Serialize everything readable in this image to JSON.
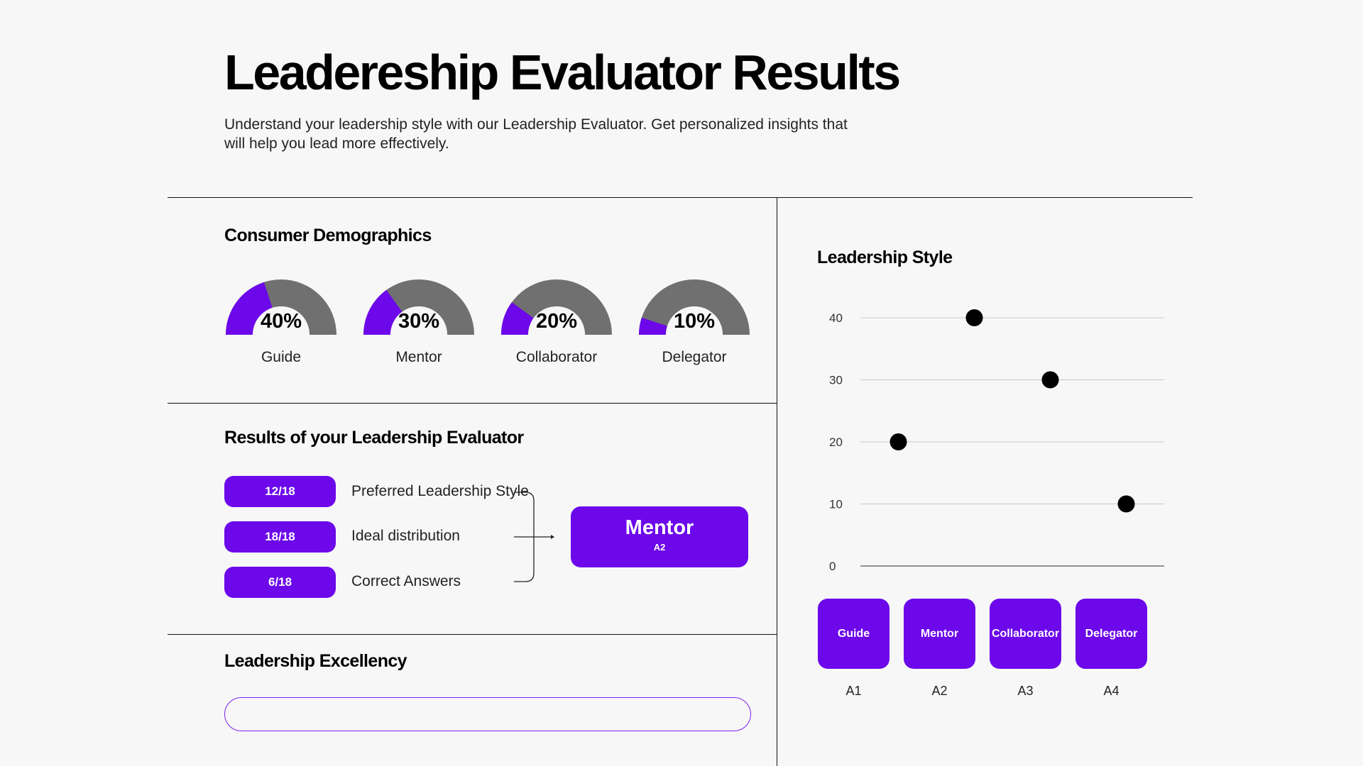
{
  "header": {
    "title": "Leadereship Evaluator Results",
    "description": "Understand your leadership style with our Leadership Evaluator. Get personalized insights that will help you lead more effectively."
  },
  "colors": {
    "accent": "#6c08ea",
    "gauge_track": "#707070",
    "text": "#000000",
    "background": "#f7f7f7"
  },
  "demographics": {
    "title": "Consumer Demographics",
    "gauges": [
      {
        "pct_label": "40%",
        "value": 40,
        "label": "Guide"
      },
      {
        "pct_label": "30%",
        "value": 30,
        "label": "Mentor"
      },
      {
        "pct_label": "20%",
        "value": 20,
        "label": "Collaborator"
      },
      {
        "pct_label": "10%",
        "value": 10,
        "label": "Delegator"
      }
    ]
  },
  "results": {
    "title": "Results of your Leadership Evaluator",
    "rows": [
      {
        "score": "12/18",
        "label": "Preferred Leadership Style"
      },
      {
        "score": "18/18",
        "label": "Ideal distribution"
      },
      {
        "score": "6/18",
        "label": "Correct Answers"
      }
    ],
    "outcome": {
      "name": "Mentor",
      "code": "A2"
    }
  },
  "excellency": {
    "title": "Leadership Excellency"
  },
  "leadership_style": {
    "title": "Leadership Style",
    "buttons": [
      {
        "label": "Guide",
        "code": "A1"
      },
      {
        "label": "Mentor",
        "code": "A2"
      },
      {
        "label": "Collaborator",
        "code": "A3"
      },
      {
        "label": "Delegator",
        "code": "A4"
      }
    ]
  },
  "chart_data": {
    "type": "scatter",
    "title": "Leadership Style",
    "yticks": [
      0,
      10,
      20,
      30,
      40
    ],
    "ylim": [
      0,
      40
    ],
    "xlim": [
      0,
      1
    ],
    "points": [
      {
        "x": 0.375,
        "y": 40
      },
      {
        "x": 0.625,
        "y": 30
      },
      {
        "x": 0.125,
        "y": 20
      },
      {
        "x": 0.875,
        "y": 10
      }
    ],
    "grid": "horizontal",
    "legend": "none"
  }
}
